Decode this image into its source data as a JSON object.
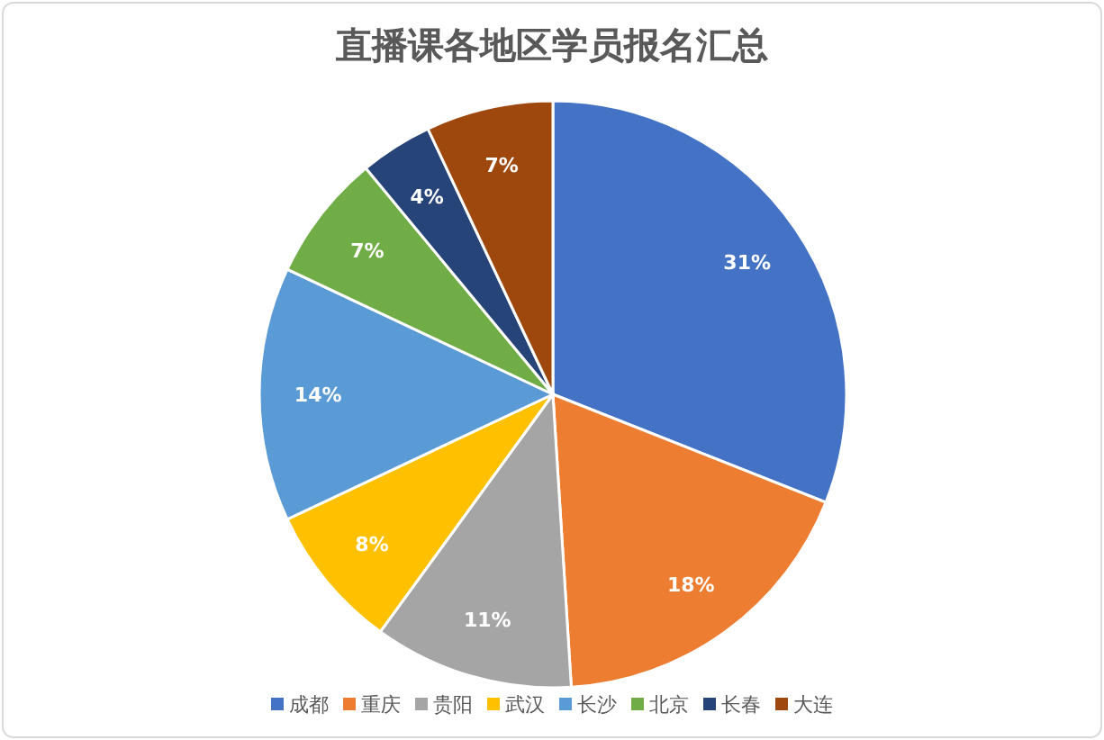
{
  "chart_data": {
    "type": "pie",
    "title": "直播课各地区学员报名汇总",
    "categories": [
      "成都",
      "重庆",
      "贵阳",
      "武汉",
      "长沙",
      "北京",
      "长春",
      "大连"
    ],
    "values": [
      31,
      18,
      11,
      8,
      14,
      7,
      4,
      7
    ],
    "colors": [
      "#4472c4",
      "#ed7d31",
      "#a5a5a5",
      "#ffc000",
      "#5b9bd5",
      "#70ad47",
      "#264478",
      "#9e480e"
    ],
    "value_labels": [
      "31%",
      "18%",
      "11%",
      "8%",
      "14%",
      "7%",
      "4%",
      "7%"
    ],
    "legend": "bottom"
  }
}
